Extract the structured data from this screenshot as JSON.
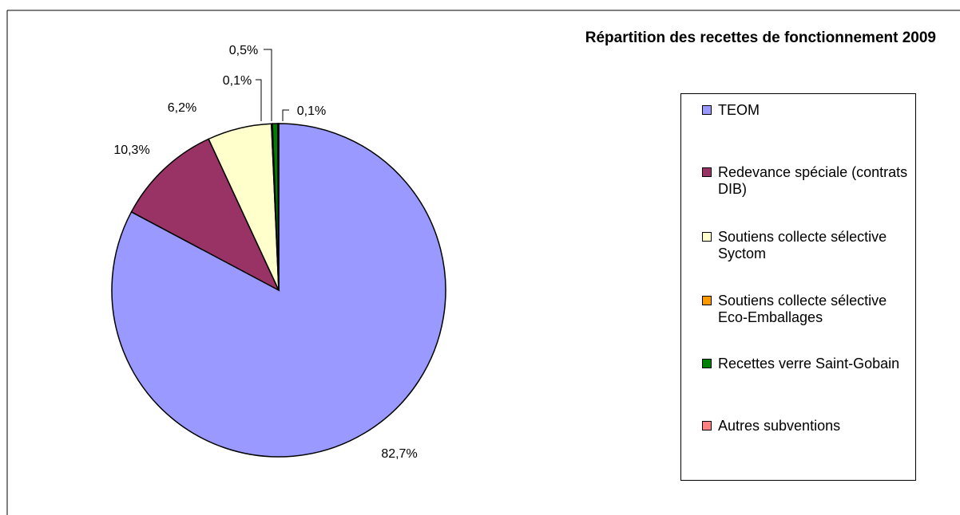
{
  "chart_data": {
    "type": "pie",
    "title": "Répartition des recettes de fonctionnement 2009",
    "categories": [
      "TEOM",
      "Redevance spéciale (contrats DIB)",
      "Soutiens collecte sélective Syctom",
      "Soutiens collecte sélective Eco-Emballages",
      "Recettes verre Saint-Gobain",
      "Autres subventions"
    ],
    "values": [
      82.7,
      10.3,
      6.2,
      0.1,
      0.5,
      0.1
    ],
    "value_labels": [
      "82,7%",
      "10,3%",
      "6,2%",
      "0,1%",
      "0,5%",
      "0,1%"
    ],
    "colors": [
      "#9999ff",
      "#993366",
      "#ffffcc",
      "#ff9900",
      "#008000",
      "#ff8080"
    ],
    "legend": "right"
  }
}
